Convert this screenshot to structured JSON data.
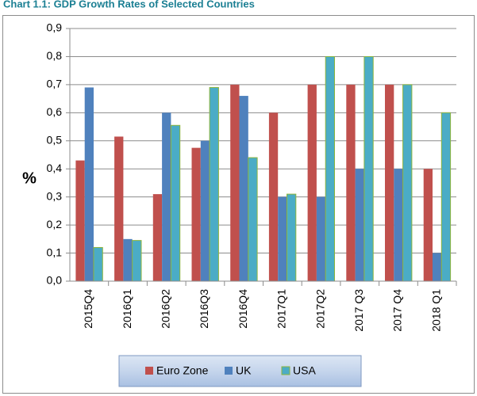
{
  "chart_data": {
    "type": "bar",
    "title": "Chart 1.1: GDP Growth Rates of Selected Countries",
    "ylabel": "%",
    "categories": [
      "2015Q4",
      "2016Q1",
      "2016Q2",
      "2016Q3",
      "2016Q4",
      "2017Q1",
      "2017Q2",
      "2017 Q3",
      "2017 Q4",
      "2018 Q1"
    ],
    "series": [
      {
        "name": "Euro Zone",
        "color": "#c0504d",
        "values": [
          0.43,
          0.515,
          0.31,
          0.475,
          0.7,
          0.6,
          0.7,
          0.7,
          0.7,
          0.4
        ]
      },
      {
        "name": "UK",
        "color": "#4f81bd",
        "values": [
          0.69,
          0.15,
          0.6,
          0.5,
          0.66,
          0.3,
          0.3,
          0.4,
          0.4,
          0.1
        ]
      },
      {
        "name": "USA",
        "color": "#4bacc6",
        "values": [
          0.12,
          0.145,
          0.555,
          0.69,
          0.44,
          0.31,
          0.8,
          0.8,
          0.7,
          0.6
        ]
      }
    ],
    "ylim": [
      0,
      0.9
    ],
    "yticks": [
      {
        "value": 0,
        "label": "0,0"
      },
      {
        "value": 0.1,
        "label": "0,1"
      },
      {
        "value": 0.2,
        "label": "0,2"
      },
      {
        "value": 0.3,
        "label": "0,3"
      },
      {
        "value": 0.4,
        "label": "0,4"
      },
      {
        "value": 0.5,
        "label": "0,5"
      },
      {
        "value": 0.6,
        "label": "0,6"
      },
      {
        "value": 0.7,
        "label": "0,7"
      },
      {
        "value": 0.8,
        "label": "0,8"
      },
      {
        "value": 0.9,
        "label": "0,9"
      }
    ],
    "grid": true,
    "legend": "bottom"
  }
}
